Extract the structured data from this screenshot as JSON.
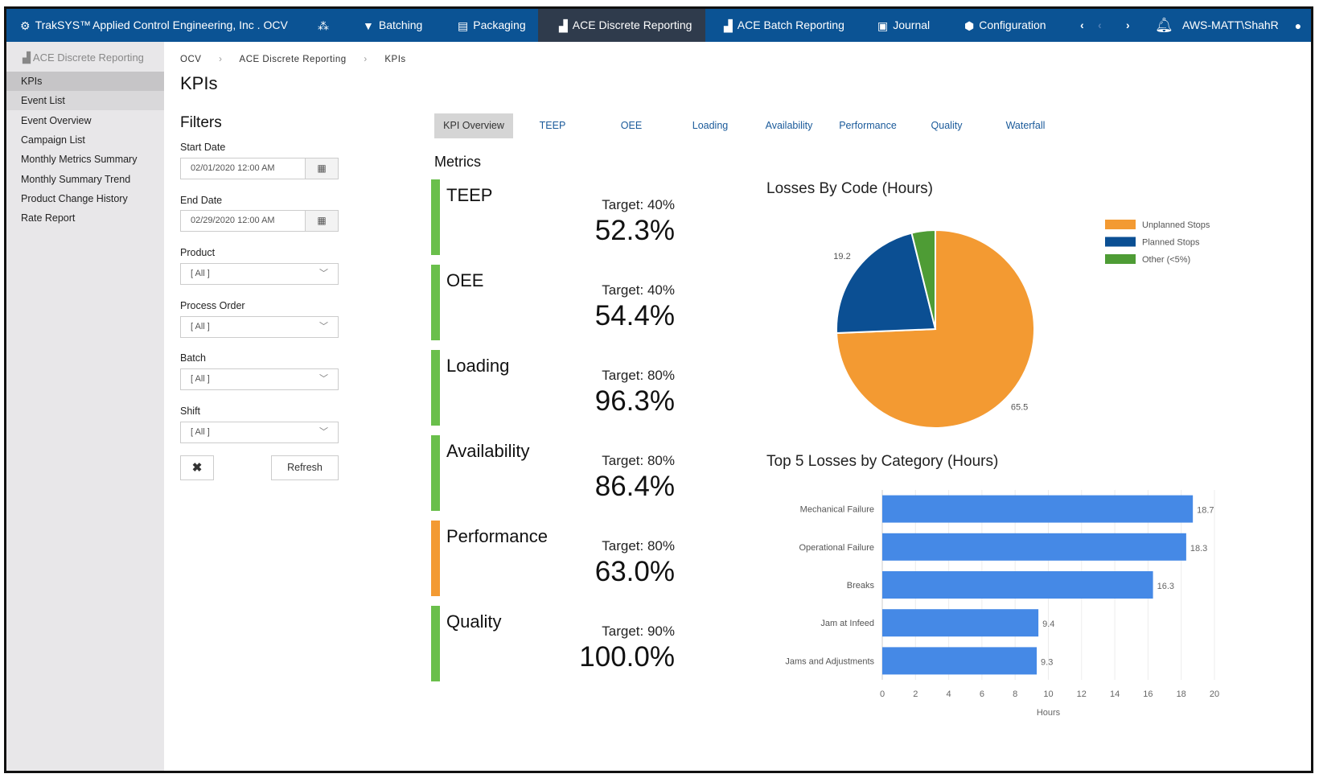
{
  "navbar": {
    "brand": "TrakSYS™",
    "site": "Applied Control Engineering, Inc . OCV",
    "items": [
      {
        "label": "Batching",
        "icon": "filter-icon"
      },
      {
        "label": "Packaging",
        "icon": "archive-icon"
      },
      {
        "label": "ACE Discrete Reporting",
        "icon": "bar-chart-icon",
        "active": true
      },
      {
        "label": "ACE Batch Reporting",
        "icon": "bar-chart-icon"
      },
      {
        "label": "Journal",
        "icon": "clipboard-icon"
      },
      {
        "label": "Configuration",
        "icon": "cube-icon"
      }
    ],
    "user": "AWS-MATT\\ShahR"
  },
  "sidebar": {
    "header": "ACE Discrete Reporting",
    "items": [
      {
        "label": "KPIs",
        "selected": true
      },
      {
        "label": "Event List"
      },
      {
        "label": "Event Overview"
      },
      {
        "label": "Campaign List"
      },
      {
        "label": "Monthly Metrics Summary"
      },
      {
        "label": "Monthly Summary Trend"
      },
      {
        "label": "Product Change History"
      },
      {
        "label": "Rate Report"
      }
    ]
  },
  "breadcrumb": [
    "OCV",
    "ACE Discrete Reporting",
    "KPIs"
  ],
  "page_title": "KPIs",
  "filters": {
    "title": "Filters",
    "start_date": {
      "label": "Start Date",
      "value": "02/01/2020 12:00 AM"
    },
    "end_date": {
      "label": "End Date",
      "value": "02/29/2020 12:00 AM"
    },
    "product": {
      "label": "Product",
      "value": "[ All ]"
    },
    "process_order": {
      "label": "Process Order",
      "value": "[ All ]"
    },
    "batch": {
      "label": "Batch",
      "value": "[ All ]"
    },
    "shift": {
      "label": "Shift",
      "value": "[ All ]"
    },
    "clear_label": "✖",
    "refresh_label": "Refresh"
  },
  "tabs": [
    "KPI Overview",
    "TEEP",
    "OEE",
    "Loading",
    "Availability",
    "Performance",
    "Quality",
    "Waterfall"
  ],
  "metrics": {
    "title": "Metrics",
    "items": [
      {
        "name": "TEEP",
        "target": "Target: 40%",
        "value": "52.3%",
        "color": "#6abf4b"
      },
      {
        "name": "OEE",
        "target": "Target: 40%",
        "value": "54.4%",
        "color": "#6abf4b"
      },
      {
        "name": "Loading",
        "target": "Target: 80%",
        "value": "96.3%",
        "color": "#6abf4b"
      },
      {
        "name": "Availability",
        "target": "Target: 80%",
        "value": "86.4%",
        "color": "#6abf4b"
      },
      {
        "name": "Performance",
        "target": "Target: 80%",
        "value": "63.0%",
        "color": "#f39a32"
      },
      {
        "name": "Quality",
        "target": "Target: 90%",
        "value": "100.0%",
        "color": "#6abf4b"
      }
    ]
  },
  "chart_data": [
    {
      "type": "pie",
      "title": "Losses By Code (Hours)",
      "legend_position": "top-right",
      "slices": [
        {
          "name": "Unplanned Stops",
          "value": 65.5,
          "label": "65.5",
          "color": "#f39a32"
        },
        {
          "name": "Planned Stops",
          "value": 19.2,
          "label": "19.2",
          "color": "#0b4f93"
        },
        {
          "name": "Other (<5%)",
          "value": 3.4,
          "label": "",
          "color": "#4e9c35"
        }
      ]
    },
    {
      "type": "bar",
      "orientation": "horizontal",
      "title": "Top 5 Losses by Category (Hours)",
      "xlabel": "Hours",
      "xlim": [
        0,
        20
      ],
      "xticks": [
        0,
        2,
        4,
        6,
        8,
        10,
        12,
        14,
        16,
        18,
        20
      ],
      "grid": true,
      "color": "#4589e6",
      "categories": [
        "Mechanical Failure",
        "Operational Failure",
        "Breaks",
        "Jam at Infeed",
        "Jams and Adjustments"
      ],
      "values": [
        18.7,
        18.3,
        16.3,
        9.4,
        9.3
      ],
      "labels": [
        "18.7",
        "18.3",
        "16.3",
        "9.4",
        "9.3"
      ]
    }
  ]
}
